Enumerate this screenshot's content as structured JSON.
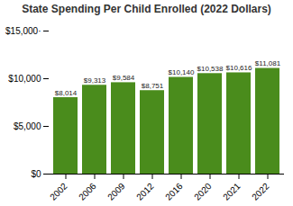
{
  "chart_data": {
    "type": "bar",
    "title": "State Spending Per Child Enrolled (2022 Dollars)",
    "categories": [
      "2002",
      "2006",
      "2009",
      "2012",
      "2016",
      "2020",
      "2021",
      "2022"
    ],
    "values": [
      8014,
      9313,
      9584,
      8751,
      10140,
      10538,
      10616,
      11081
    ],
    "value_labels": [
      "$8,014",
      "$9,313",
      "$9,584",
      "$8,751",
      "$10,140",
      "$10,538",
      "$10,616",
      "$11,081"
    ],
    "data_labels": true,
    "color": "#4a8c1c",
    "ylim": [
      0,
      15000
    ],
    "yticks": [
      {
        "value": 0,
        "label": "$0"
      },
      {
        "value": 5000,
        "label": "$5,000"
      },
      {
        "value": 10000,
        "label": "$10,000"
      },
      {
        "value": 15000,
        "label": "$15,000·"
      }
    ],
    "grid": false
  }
}
